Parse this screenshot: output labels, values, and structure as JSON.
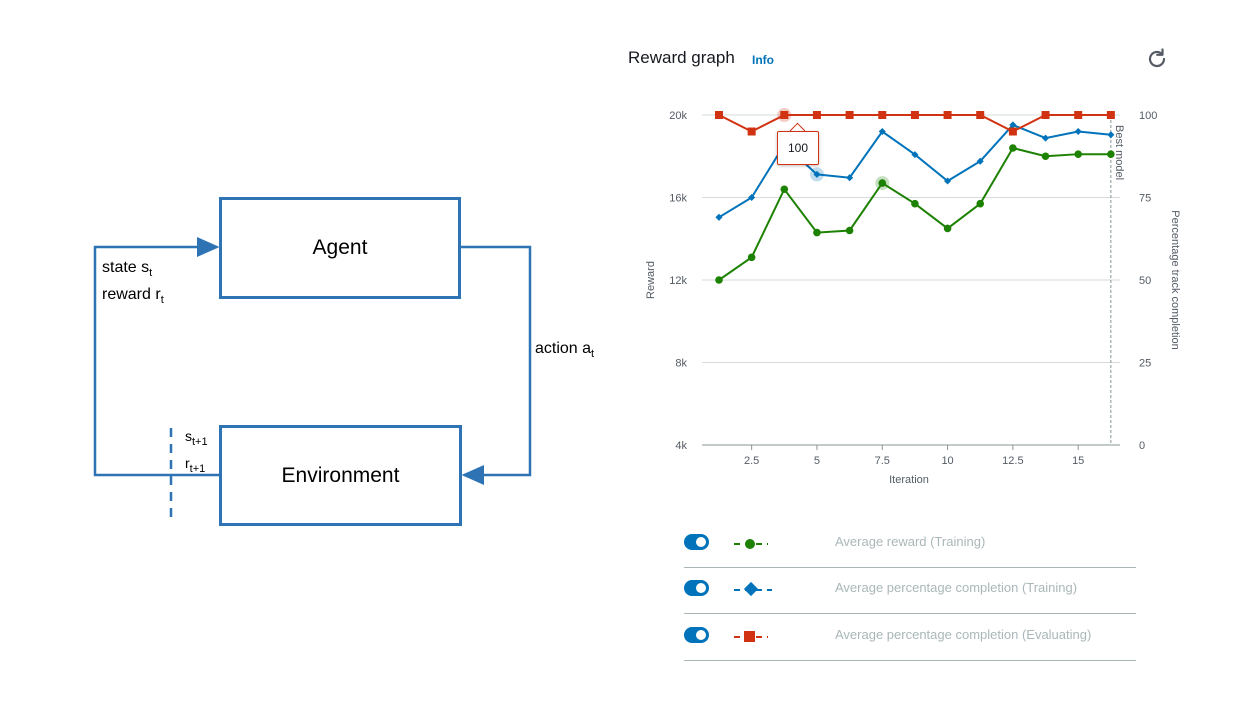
{
  "diagram": {
    "agent_label": "Agent",
    "environment_label": "Environment",
    "state_label": "state s",
    "state_sub": "t",
    "reward_label": "reward r",
    "reward_sub": "t",
    "action_label": "action a",
    "action_sub": "t",
    "next_state": "s",
    "next_state_sub": "t+1",
    "next_reward": "r",
    "next_reward_sub": "t+1",
    "colors": {
      "line": "#2e74b5"
    }
  },
  "panel": {
    "title": "Reward graph",
    "info": "Info",
    "refresh_icon": "refresh-icon"
  },
  "chart_data": {
    "type": "line",
    "xlabel": "Iteration",
    "ylabel_left": "Reward",
    "ylabel_right": "Percentage track completion",
    "x_ticks": [
      2.5,
      5,
      7.5,
      10,
      12.5,
      15
    ],
    "y_left_ticks": [
      "4k",
      "8k",
      "12k",
      "16k",
      "20k"
    ],
    "y_left_range": [
      4000,
      20000
    ],
    "y_right_ticks": [
      "0",
      "25",
      "50",
      "75",
      "100"
    ],
    "y_right_range": [
      0,
      100
    ],
    "x_range": [
      0.6,
      16.6
    ],
    "grid": true,
    "best_model_label": "Best model",
    "best_model_x": 16.25,
    "tooltip": "100",
    "series": [
      {
        "name": "Average reward (Training)",
        "axis": "left",
        "color": "#1d8102",
        "marker": "circle",
        "x": [
          1.25,
          2.5,
          3.75,
          5,
          6.25,
          7.5,
          8.75,
          10,
          11.25,
          12.5,
          13.75,
          15,
          16.25
        ],
        "y": [
          12000,
          13100,
          16400,
          14300,
          14400,
          16700,
          15700,
          14500,
          15700,
          18400,
          18000,
          18100,
          18100
        ]
      },
      {
        "name": "Average percentage completion (Training)",
        "axis": "right",
        "color": "#0073bb",
        "marker": "diamond",
        "x": [
          1.25,
          2.5,
          3.75,
          5,
          6.25,
          7.5,
          8.75,
          10,
          11.25,
          12.5,
          13.75,
          15,
          16.25
        ],
        "y": [
          69,
          75,
          91,
          82,
          81,
          95,
          88,
          80,
          86,
          97,
          93,
          95,
          94
        ]
      },
      {
        "name": "Average percentage completion (Evaluating)",
        "axis": "right",
        "color": "#d13212",
        "marker": "square",
        "x": [
          1.25,
          2.5,
          3.75,
          5,
          6.25,
          7.5,
          8.75,
          10,
          11.25,
          12.5,
          13.75,
          15,
          16.25
        ],
        "y": [
          100,
          95,
          100,
          100,
          100,
          100,
          100,
          100,
          100,
          95,
          100,
          100,
          100
        ]
      }
    ]
  },
  "legend": [
    {
      "label": "Average reward (Training)",
      "toggle_on": true,
      "marker": "circle",
      "color": "#1d8102"
    },
    {
      "label": "Average percentage completion (Training)",
      "toggle_on": true,
      "marker": "diamond",
      "color": "#0073bb"
    },
    {
      "label": "Average percentage completion (Evaluating)",
      "toggle_on": true,
      "marker": "square",
      "color": "#d13212"
    }
  ]
}
